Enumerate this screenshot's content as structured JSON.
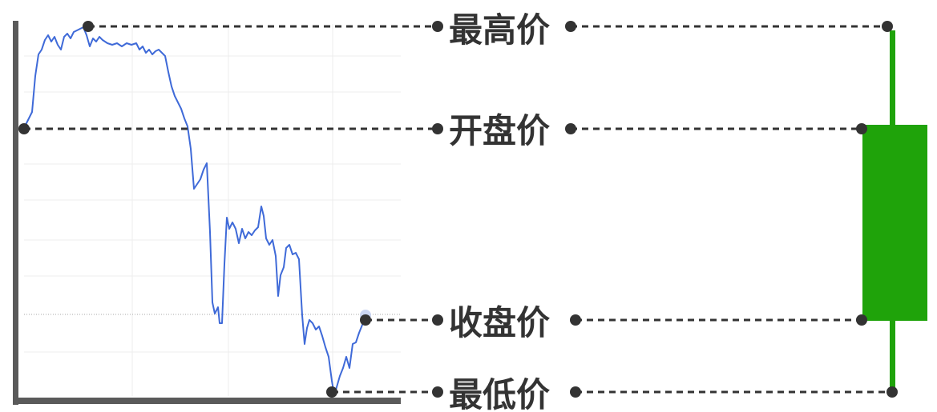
{
  "labels": {
    "high": "最高价",
    "open": "开盘价",
    "close": "收盘价",
    "low": "最低价"
  },
  "colors": {
    "price_line": "#3f6ad8",
    "candle": "#1fa30a",
    "axis": "#5a5a5a",
    "dots": "#333333",
    "grid": "#eeeeee"
  }
}
